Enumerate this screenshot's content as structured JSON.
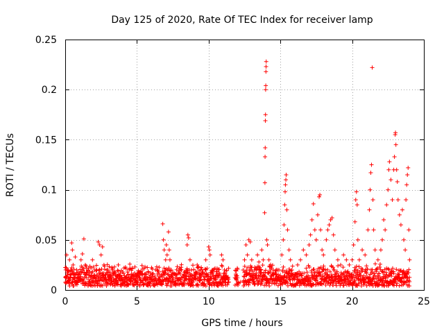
{
  "chart_data": {
    "type": "scatter",
    "title": "Day 125 of 2020, Rate Of TEC Index for receiver lamp",
    "xlabel": "GPS time / hours",
    "ylabel": "ROTI / TECUs",
    "xlim": [
      0,
      25
    ],
    "ylim": [
      0,
      0.25
    ],
    "x_ticks": [
      0,
      5,
      10,
      15,
      20,
      25
    ],
    "x_tick_labels": [
      "0",
      "5",
      "10",
      "15",
      "20",
      "25"
    ],
    "y_ticks": [
      0,
      0.05,
      0.1,
      0.15,
      0.2,
      0.25
    ],
    "y_tick_labels": [
      "0",
      "0.05",
      "0.1",
      "0.15",
      "0.2",
      "0.25"
    ],
    "grid": true,
    "marker": "+",
    "series": [
      {
        "color": "#ff0000",
        "points": [
          [
            0.05,
            0.012
          ],
          [
            0.1,
            0.035
          ],
          [
            0.15,
            0.02
          ],
          [
            0.2,
            0.008
          ],
          [
            0.3,
            0.03
          ],
          [
            0.35,
            0.015
          ],
          [
            0.45,
            0.047
          ],
          [
            0.5,
            0.04
          ],
          [
            0.55,
            0.025
          ],
          [
            0.6,
            0.012
          ],
          [
            0.7,
            0.033
          ],
          [
            0.8,
            0.02
          ],
          [
            0.9,
            0.018
          ],
          [
            1.0,
            0.01
          ],
          [
            1.1,
            0.03
          ],
          [
            1.2,
            0.036
          ],
          [
            1.3,
            0.051
          ],
          [
            1.4,
            0.025
          ],
          [
            1.5,
            0.012
          ],
          [
            1.6,
            0.02
          ],
          [
            1.7,
            0.015
          ],
          [
            1.8,
            0.022
          ],
          [
            1.9,
            0.03
          ],
          [
            2.0,
            0.012
          ],
          [
            2.1,
            0.009
          ],
          [
            2.2,
            0.02
          ],
          [
            2.3,
            0.048
          ],
          [
            2.4,
            0.045
          ],
          [
            2.5,
            0.035
          ],
          [
            2.6,
            0.043
          ],
          [
            2.7,
            0.025
          ],
          [
            2.8,
            0.015
          ],
          [
            2.9,
            0.02
          ],
          [
            3.0,
            0.01
          ],
          [
            3.1,
            0.018
          ],
          [
            3.2,
            0.012
          ],
          [
            3.3,
            0.02
          ],
          [
            3.4,
            0.009
          ],
          [
            3.5,
            0.015
          ],
          [
            3.6,
            0.01
          ],
          [
            3.7,
            0.025
          ],
          [
            3.8,
            0.014
          ],
          [
            3.9,
            0.01
          ],
          [
            4.0,
            0.018
          ],
          [
            4.1,
            0.022
          ],
          [
            4.2,
            0.012
          ],
          [
            4.3,
            0.009
          ],
          [
            4.4,
            0.015
          ],
          [
            4.5,
            0.01
          ],
          [
            4.6,
            0.012
          ],
          [
            4.7,
            0.008
          ],
          [
            4.8,
            0.006
          ],
          [
            4.9,
            0.01
          ],
          [
            5.0,
            0.008
          ],
          [
            5.2,
            0.012
          ],
          [
            5.4,
            0.021
          ],
          [
            5.6,
            0.01
          ],
          [
            5.8,
            0.008
          ],
          [
            6.0,
            0.012
          ],
          [
            6.2,
            0.01
          ],
          [
            6.4,
            0.02
          ],
          [
            6.6,
            0.015
          ],
          [
            6.8,
            0.066
          ],
          [
            6.85,
            0.05
          ],
          [
            6.9,
            0.04
          ],
          [
            7.0,
            0.03
          ],
          [
            7.05,
            0.045
          ],
          [
            7.1,
            0.035
          ],
          [
            7.2,
            0.058
          ],
          [
            7.25,
            0.04
          ],
          [
            7.3,
            0.03
          ],
          [
            7.4,
            0.02
          ],
          [
            7.5,
            0.012
          ],
          [
            7.7,
            0.015
          ],
          [
            7.9,
            0.01
          ],
          [
            8.1,
            0.02
          ],
          [
            8.3,
            0.015
          ],
          [
            8.5,
            0.045
          ],
          [
            8.55,
            0.055
          ],
          [
            8.6,
            0.052
          ],
          [
            8.7,
            0.03
          ],
          [
            8.8,
            0.02
          ],
          [
            9.0,
            0.015
          ],
          [
            9.2,
            0.025
          ],
          [
            9.4,
            0.012
          ],
          [
            9.6,
            0.018
          ],
          [
            9.8,
            0.03
          ],
          [
            10.0,
            0.043
          ],
          [
            10.05,
            0.04
          ],
          [
            10.1,
            0.035
          ],
          [
            10.3,
            0.02
          ],
          [
            10.5,
            0.008
          ],
          [
            10.7,
            0.015
          ],
          [
            10.9,
            0.035
          ],
          [
            11.0,
            0.03
          ],
          [
            11.1,
            0.02
          ],
          [
            11.2,
            0.01
          ],
          [
            11.4,
            0.008
          ],
          [
            12.0,
            0.012
          ],
          [
            12.2,
            0.008
          ],
          [
            12.4,
            0.02
          ],
          [
            12.5,
            0.03
          ],
          [
            12.6,
            0.045
          ],
          [
            12.7,
            0.035
          ],
          [
            12.8,
            0.05
          ],
          [
            12.9,
            0.048
          ],
          [
            13.0,
            0.03
          ],
          [
            13.2,
            0.02
          ],
          [
            13.4,
            0.035
          ],
          [
            13.5,
            0.028
          ],
          [
            13.6,
            0.015
          ],
          [
            13.7,
            0.04
          ],
          [
            13.8,
            0.03
          ],
          [
            13.9,
            0.077
          ],
          [
            13.92,
            0.107
          ],
          [
            13.93,
            0.133
          ],
          [
            13.94,
            0.142
          ],
          [
            13.95,
            0.169
          ],
          [
            13.96,
            0.175
          ],
          [
            13.97,
            0.2
          ],
          [
            13.98,
            0.204
          ],
          [
            13.99,
            0.218
          ],
          [
            14.0,
            0.223
          ],
          [
            14.01,
            0.228
          ],
          [
            14.05,
            0.05
          ],
          [
            14.1,
            0.045
          ],
          [
            14.2,
            0.03
          ],
          [
            14.3,
            0.02
          ],
          [
            14.5,
            0.015
          ],
          [
            14.7,
            0.01
          ],
          [
            14.9,
            0.02
          ],
          [
            15.1,
            0.035
          ],
          [
            15.2,
            0.05
          ],
          [
            15.25,
            0.065
          ],
          [
            15.3,
            0.085
          ],
          [
            15.33,
            0.098
          ],
          [
            15.35,
            0.105
          ],
          [
            15.38,
            0.11
          ],
          [
            15.4,
            0.115
          ],
          [
            15.45,
            0.08
          ],
          [
            15.5,
            0.06
          ],
          [
            15.6,
            0.04
          ],
          [
            15.7,
            0.03
          ],
          [
            15.8,
            0.02
          ],
          [
            16.0,
            0.015
          ],
          [
            16.2,
            0.025
          ],
          [
            16.4,
            0.03
          ],
          [
            16.6,
            0.04
          ],
          [
            16.8,
            0.035
          ],
          [
            17.0,
            0.045
          ],
          [
            17.1,
            0.055
          ],
          [
            17.2,
            0.07
          ],
          [
            17.3,
            0.086
          ],
          [
            17.4,
            0.06
          ],
          [
            17.5,
            0.05
          ],
          [
            17.6,
            0.075
          ],
          [
            17.7,
            0.093
          ],
          [
            17.75,
            0.095
          ],
          [
            17.8,
            0.06
          ],
          [
            17.9,
            0.04
          ],
          [
            18.0,
            0.035
          ],
          [
            18.2,
            0.05
          ],
          [
            18.3,
            0.06
          ],
          [
            18.4,
            0.065
          ],
          [
            18.5,
            0.07
          ],
          [
            18.6,
            0.072
          ],
          [
            18.7,
            0.055
          ],
          [
            18.8,
            0.04
          ],
          [
            19.0,
            0.03
          ],
          [
            19.2,
            0.025
          ],
          [
            19.4,
            0.035
          ],
          [
            19.6,
            0.03
          ],
          [
            19.8,
            0.025
          ],
          [
            20.0,
            0.03
          ],
          [
            20.1,
            0.045
          ],
          [
            20.2,
            0.068
          ],
          [
            20.25,
            0.09
          ],
          [
            20.3,
            0.098
          ],
          [
            20.35,
            0.085
          ],
          [
            20.4,
            0.05
          ],
          [
            20.5,
            0.03
          ],
          [
            20.7,
            0.04
          ],
          [
            20.9,
            0.035
          ],
          [
            21.1,
            0.06
          ],
          [
            21.2,
            0.08
          ],
          [
            21.25,
            0.1
          ],
          [
            21.3,
            0.117
          ],
          [
            21.35,
            0.125
          ],
          [
            21.4,
            0.222
          ],
          [
            21.45,
            0.09
          ],
          [
            21.5,
            0.06
          ],
          [
            21.6,
            0.04
          ],
          [
            21.8,
            0.03
          ],
          [
            22.0,
            0.04
          ],
          [
            22.1,
            0.05
          ],
          [
            22.2,
            0.07
          ],
          [
            22.3,
            0.06
          ],
          [
            22.4,
            0.085
          ],
          [
            22.5,
            0.1
          ],
          [
            22.55,
            0.12
          ],
          [
            22.6,
            0.128
          ],
          [
            22.7,
            0.11
          ],
          [
            22.8,
            0.09
          ],
          [
            22.9,
            0.12
          ],
          [
            22.95,
            0.133
          ],
          [
            23.0,
            0.155
          ],
          [
            23.02,
            0.157
          ],
          [
            23.05,
            0.145
          ],
          [
            23.1,
            0.12
          ],
          [
            23.15,
            0.108
          ],
          [
            23.2,
            0.09
          ],
          [
            23.3,
            0.075
          ],
          [
            23.4,
            0.065
          ],
          [
            23.5,
            0.08
          ],
          [
            23.6,
            0.05
          ],
          [
            23.7,
            0.04
          ],
          [
            23.75,
            0.09
          ],
          [
            23.8,
            0.105
          ],
          [
            23.85,
            0.115
          ],
          [
            23.9,
            0.122
          ],
          [
            23.95,
            0.06
          ],
          [
            24.0,
            0.03
          ]
        ]
      }
    ],
    "filler": {
      "x_from": 0.0,
      "x_to": 24.0,
      "y_min": 0.004,
      "y_max": 0.027,
      "gaps_hours": [
        [
          11.4,
          11.8
        ],
        [
          12.1,
          12.4
        ]
      ]
    }
  }
}
